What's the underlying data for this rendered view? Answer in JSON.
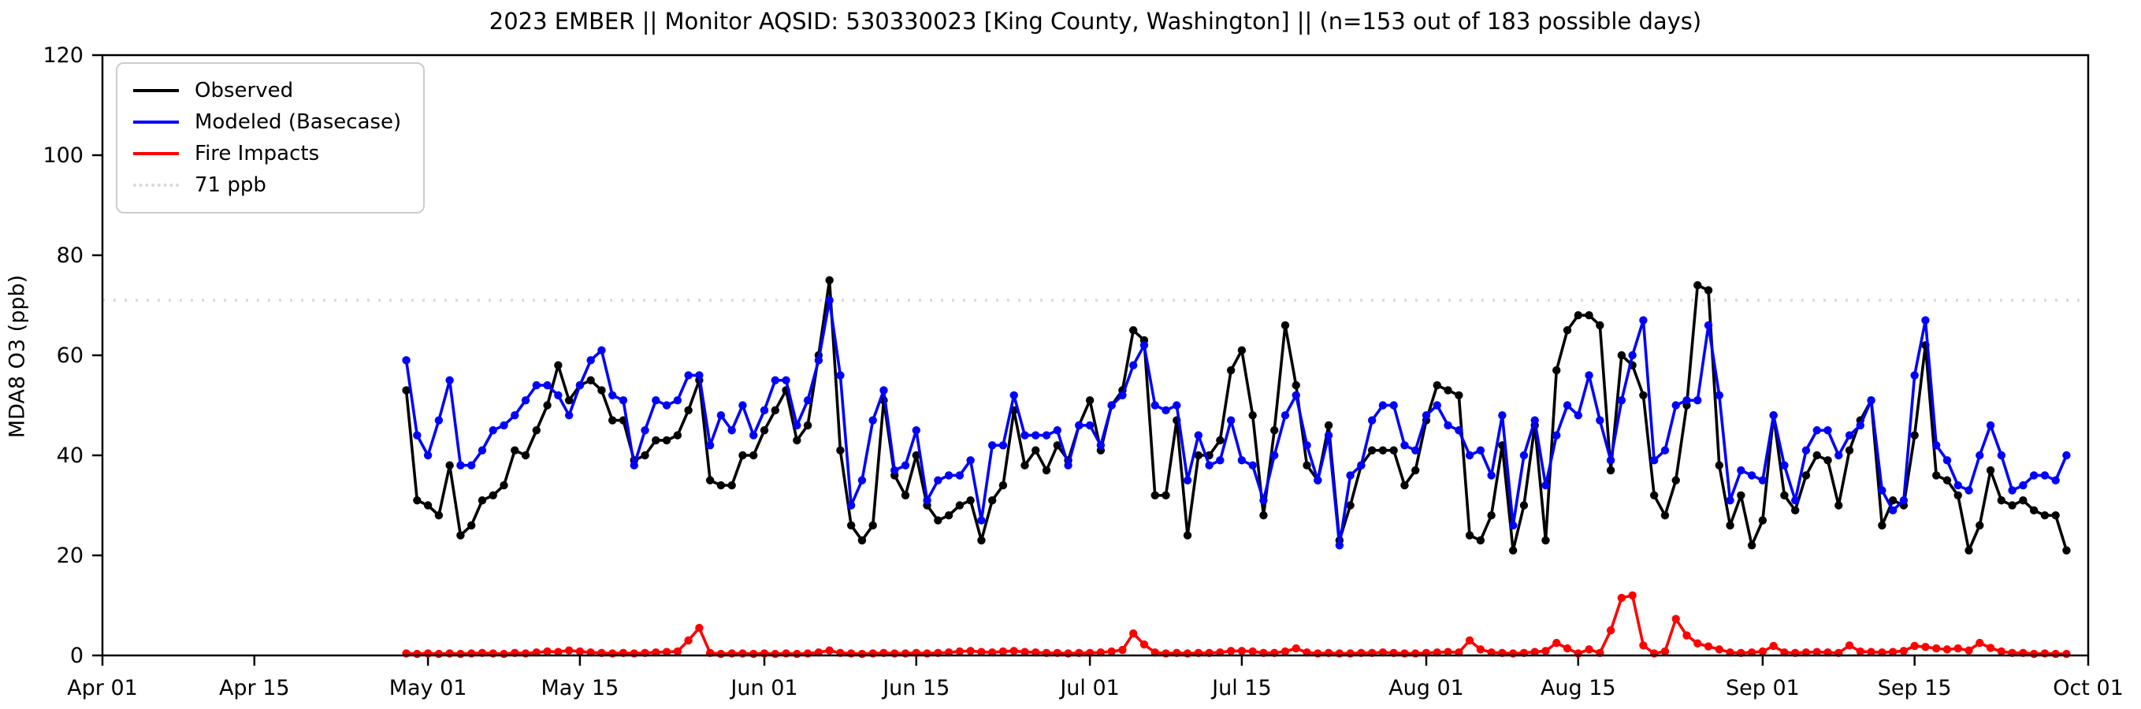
{
  "chart_data": {
    "type": "line",
    "title": "2023 EMBER || Monitor AQSID: 530330023 [King County, Washington] || (n=153 out of 183 possible days)",
    "ylabel": "MDA8 O3 (ppb)",
    "xlabel": "",
    "ylim": [
      0,
      120
    ],
    "y_ticks": [
      0,
      20,
      40,
      60,
      80,
      100,
      120
    ],
    "xlim_days": [
      0,
      183
    ],
    "x_ticks": [
      {
        "day": 0,
        "label": "Apr 01"
      },
      {
        "day": 14,
        "label": "Apr 15"
      },
      {
        "day": 30,
        "label": "May 01"
      },
      {
        "day": 44,
        "label": "May 15"
      },
      {
        "day": 61,
        "label": "Jun 01"
      },
      {
        "day": 75,
        "label": "Jun 15"
      },
      {
        "day": 91,
        "label": "Jul 01"
      },
      {
        "day": 105,
        "label": "Jul 15"
      },
      {
        "day": 122,
        "label": "Aug 01"
      },
      {
        "day": 136,
        "label": "Aug 15"
      },
      {
        "day": 153,
        "label": "Sep 01"
      },
      {
        "day": 167,
        "label": "Sep 15"
      },
      {
        "day": 183,
        "label": "Oct 01"
      }
    ],
    "grid": false,
    "legend_position": "upper left",
    "threshold": {
      "label": "71 ppb",
      "value": 71,
      "color": "#d9d9d9"
    },
    "data_start_day_offset": 28,
    "data_start_date": "Apr 29",
    "data_end_date": "Sep 29",
    "series": [
      {
        "name": "Observed",
        "color": "#000000",
        "values": [
          53,
          31,
          30,
          28,
          38,
          24,
          26,
          31,
          32,
          34,
          41,
          40,
          45,
          50,
          58,
          51,
          54,
          55,
          53,
          47,
          47,
          39,
          40,
          43,
          43,
          44,
          49,
          55,
          35,
          34,
          34,
          40,
          40,
          45,
          49,
          53,
          43,
          46,
          60,
          75,
          41,
          26,
          23,
          26,
          51,
          36,
          32,
          40,
          30,
          27,
          28,
          30,
          31,
          23,
          31,
          34,
          49,
          38,
          41,
          37,
          42,
          39,
          46,
          51,
          41,
          50,
          53,
          65,
          63,
          32,
          32,
          47,
          24,
          40,
          40,
          43,
          57,
          61,
          48,
          28,
          45,
          66,
          54,
          38,
          35,
          46,
          23,
          30,
          38,
          41,
          41,
          41,
          34,
          37,
          47,
          54,
          53,
          52,
          24,
          23,
          28,
          42,
          21,
          30,
          46,
          23,
          57,
          65,
          68,
          68,
          66,
          37,
          60,
          58,
          52,
          32,
          28,
          35,
          50,
          74,
          73,
          38,
          26,
          32,
          22,
          27,
          48,
          32,
          29,
          36,
          40,
          39,
          30,
          41,
          47,
          51,
          26,
          31,
          30,
          44,
          62,
          36,
          35,
          32,
          21,
          26,
          37,
          31,
          30,
          31,
          29,
          28,
          28,
          21
        ]
      },
      {
        "name": "Modeled (Basecase)",
        "color": "#0000ff",
        "values": [
          59,
          44,
          40,
          47,
          55,
          38,
          38,
          41,
          45,
          46,
          48,
          51,
          54,
          54,
          52,
          48,
          54,
          59,
          61,
          52,
          51,
          38,
          45,
          51,
          50,
          51,
          56,
          56,
          42,
          48,
          45,
          50,
          44,
          49,
          55,
          55,
          46,
          51,
          59,
          71,
          56,
          30,
          35,
          47,
          53,
          37,
          38,
          45,
          31,
          35,
          36,
          36,
          39,
          27,
          42,
          42,
          52,
          44,
          44,
          44,
          45,
          38,
          46,
          46,
          42,
          50,
          52,
          58,
          62,
          50,
          49,
          50,
          35,
          44,
          38,
          39,
          47,
          39,
          38,
          31,
          40,
          48,
          52,
          42,
          35,
          44,
          22,
          36,
          38,
          47,
          50,
          50,
          42,
          41,
          48,
          50,
          46,
          45,
          40,
          41,
          36,
          48,
          26,
          40,
          47,
          34,
          44,
          50,
          48,
          56,
          47,
          39,
          51,
          60,
          67,
          39,
          41,
          50,
          51,
          51,
          66,
          52,
          31,
          37,
          36,
          35,
          48,
          38,
          31,
          41,
          45,
          45,
          40,
          44,
          46,
          51,
          33,
          29,
          31,
          56,
          67,
          42,
          39,
          34,
          33,
          40,
          46,
          40,
          33,
          34,
          36,
          36,
          35,
          40
        ]
      },
      {
        "name": "Fire Impacts",
        "color": "#ff0000",
        "values": [
          0.4,
          0.3,
          0.4,
          0.3,
          0.4,
          0.3,
          0.4,
          0.5,
          0.4,
          0.3,
          0.5,
          0.4,
          0.6,
          0.8,
          0.7,
          1.0,
          0.8,
          0.6,
          0.5,
          0.4,
          0.5,
          0.4,
          0.5,
          0.6,
          0.7,
          0.8,
          3.0,
          5.5,
          0.5,
          0.3,
          0.4,
          0.4,
          0.3,
          0.4,
          0.3,
          0.4,
          0.3,
          0.4,
          0.6,
          1.0,
          0.5,
          0.4,
          0.3,
          0.4,
          0.5,
          0.4,
          0.4,
          0.5,
          0.4,
          0.5,
          0.6,
          0.8,
          0.9,
          0.7,
          0.6,
          0.8,
          0.9,
          0.7,
          0.6,
          0.5,
          0.5,
          0.4,
          0.5,
          0.5,
          0.6,
          0.8,
          1.1,
          4.4,
          2.2,
          0.6,
          0.4,
          0.5,
          0.4,
          0.5,
          0.5,
          0.6,
          0.9,
          0.9,
          0.8,
          0.5,
          0.5,
          0.8,
          1.4,
          0.6,
          0.4,
          0.5,
          0.4,
          0.4,
          0.5,
          0.5,
          0.6,
          0.5,
          0.4,
          0.4,
          0.5,
          0.6,
          0.7,
          0.6,
          3.0,
          1.2,
          0.6,
          0.5,
          0.4,
          0.5,
          0.7,
          0.9,
          2.5,
          1.4,
          0.4,
          1.2,
          0.5,
          5.0,
          11.5,
          12.0,
          2.0,
          0.4,
          0.8,
          7.3,
          4.0,
          2.4,
          1.8,
          1.2,
          0.6,
          0.5,
          0.6,
          0.8,
          1.9,
          0.6,
          0.5,
          0.6,
          0.7,
          0.6,
          0.5,
          2.0,
          0.8,
          0.7,
          0.6,
          0.7,
          0.9,
          1.9,
          1.7,
          1.4,
          1.2,
          1.4,
          1.0,
          2.5,
          1.5,
          0.8,
          0.5,
          0.5,
          0.3,
          0.4,
          0.3,
          0.3
        ]
      }
    ]
  }
}
